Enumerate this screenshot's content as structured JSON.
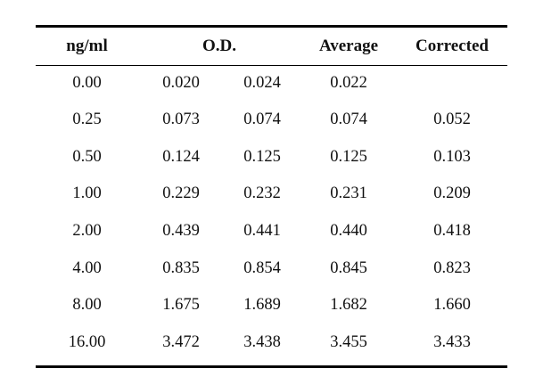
{
  "table": {
    "headers": {
      "conc": "ng/ml",
      "od": "O.D.",
      "average": "Average",
      "corrected": "Corrected"
    },
    "rows": [
      {
        "conc": "0.00",
        "od1": "0.020",
        "od2": "0.024",
        "average": "0.022",
        "corrected": ""
      },
      {
        "conc": "0.25",
        "od1": "0.073",
        "od2": "0.074",
        "average": "0.074",
        "corrected": "0.052"
      },
      {
        "conc": "0.50",
        "od1": "0.124",
        "od2": "0.125",
        "average": "0.125",
        "corrected": "0.103"
      },
      {
        "conc": "1.00",
        "od1": "0.229",
        "od2": "0.232",
        "average": "0.231",
        "corrected": "0.209"
      },
      {
        "conc": "2.00",
        "od1": "0.439",
        "od2": "0.441",
        "average": "0.440",
        "corrected": "0.418"
      },
      {
        "conc": "4.00",
        "od1": "0.835",
        "od2": "0.854",
        "average": "0.845",
        "corrected": "0.823"
      },
      {
        "conc": "8.00",
        "od1": "1.675",
        "od2": "1.689",
        "average": "1.682",
        "corrected": "1.660"
      },
      {
        "conc": "16.00",
        "od1": "3.472",
        "od2": "3.438",
        "average": "3.455",
        "corrected": "3.433"
      }
    ]
  }
}
